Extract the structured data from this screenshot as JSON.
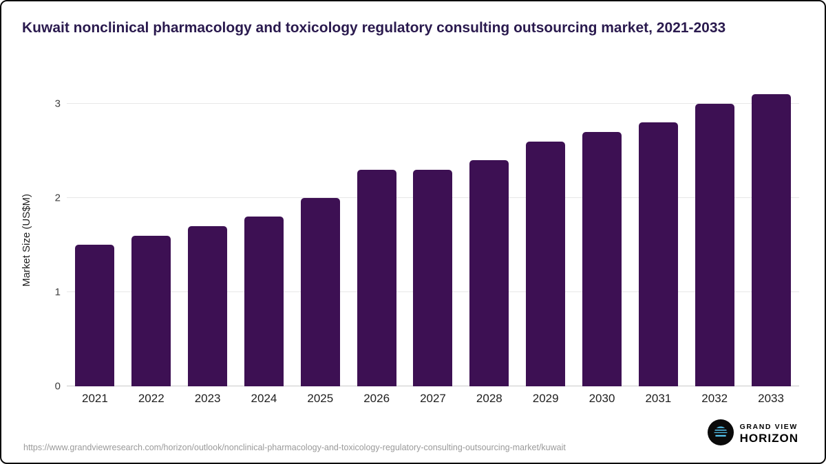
{
  "chart_data": {
    "type": "bar",
    "title": "Kuwait nonclinical pharmacology and toxicology regulatory consulting outsourcing market, 2021-2033",
    "categories": [
      "2021",
      "2022",
      "2023",
      "2024",
      "2025",
      "2026",
      "2027",
      "2028",
      "2029",
      "2030",
      "2031",
      "2032",
      "2033"
    ],
    "values": [
      1.5,
      1.6,
      1.7,
      1.8,
      2.0,
      2.3,
      2.3,
      2.4,
      2.6,
      2.7,
      2.8,
      3.0,
      3.1
    ],
    "xlabel": "",
    "ylabel": "Market Size (US$M)",
    "ylim": [
      0,
      3.1
    ],
    "yticks": [
      0,
      1,
      2,
      3
    ],
    "grid": "horizontal",
    "legend": "none",
    "bar_color": "#3d1053"
  },
  "footer": {
    "source_url": "https://www.grandviewresearch.com/horizon/outlook/nonclinical-pharmacology-and-toxicology-regulatory-consulting-outsourcing-market/kuwait",
    "logo": {
      "line1": "GRAND VIEW",
      "line2": "HORIZON"
    }
  },
  "colors": {
    "title": "#2a1a4e",
    "bar": "#3d1053",
    "accent_blue": "#56c5f0",
    "gridline": "#e7e7e7",
    "source_text": "#9a9a9a"
  }
}
